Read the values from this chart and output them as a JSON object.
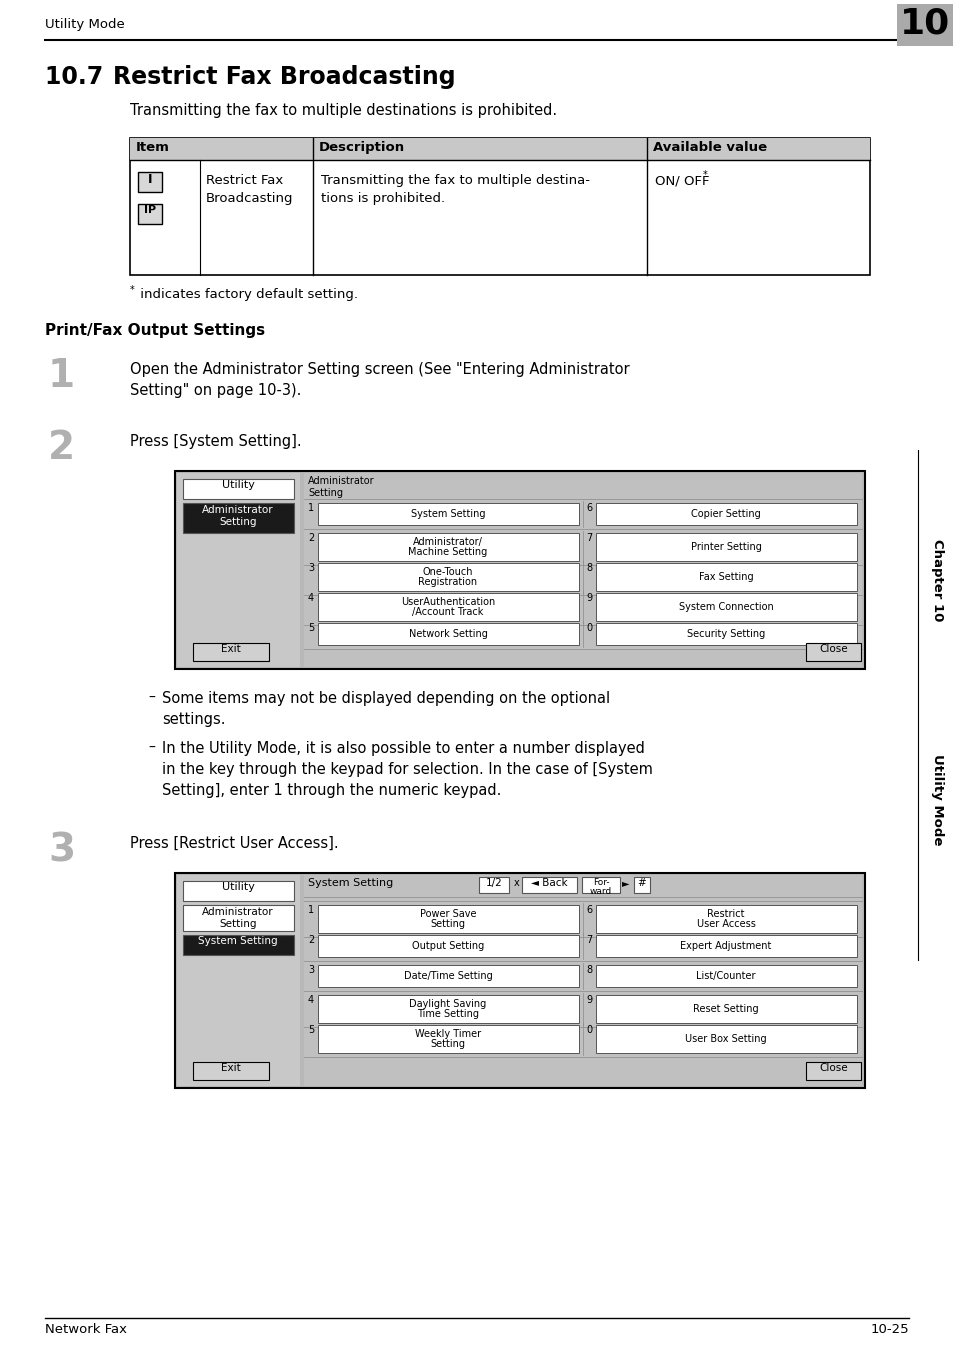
{
  "page_header": "Utility Mode",
  "chapter_num": "10",
  "section_num": "10.7",
  "section_title": "Restrict Fax Broadcasting",
  "section_intro": "Transmitting the fax to multiple destinations is prohibited.",
  "table_headers": [
    "Item",
    "Description",
    "Available value"
  ],
  "table_icon1": "I",
  "table_icon2": "IP",
  "table_col2": "Restrict Fax\nBroadcasting",
  "table_col3": "Transmitting the fax to multiple destina-\ntions is prohibited.",
  "table_col4": "ON/ OFF",
  "footnote_star": "*",
  "footnote_text": " indicates factory default setting.",
  "subsection_title": "Print/Fax Output Settings",
  "step1_num": "1",
  "step1_text": "Open the Administrator Setting screen (See \"Entering Administrator\nSetting\" on page 10-3).",
  "step2_num": "2",
  "step2_text": "Press [System Setting].",
  "step3_num": "3",
  "step3_text": "Press [Restrict User Access].",
  "bullet1": "Some items may not be displayed depending on the optional\nsettings.",
  "bullet2": "In the Utility Mode, it is also possible to enter a number displayed\nin the key through the keypad for selection. In the case of [System\nSetting], enter 1 through the numeric keypad.",
  "sidebar_ch": "Chapter 10",
  "sidebar_mode": "Utility Mode",
  "footer_left": "Network Fax",
  "footer_right": "10-25",
  "screen1_rows": [
    [
      "1",
      "System Setting",
      "6",
      "Copier Setting"
    ],
    [
      "2",
      "Administrator/\nMachine Setting",
      "7",
      "Printer Setting"
    ],
    [
      "3",
      "One-Touch\nRegistration",
      "8",
      "Fax Setting"
    ],
    [
      "4",
      "UserAuthentication\n/Account Track",
      "9",
      "System Connection"
    ],
    [
      "5",
      "Network Setting",
      "0",
      "Security Setting"
    ]
  ],
  "screen2_rows": [
    [
      "1",
      "Power Save\nSetting",
      "6",
      "Restrict\nUser Access"
    ],
    [
      "2",
      "Output Setting",
      "7",
      "Expert Adjustment"
    ],
    [
      "3",
      "Date/Time Setting",
      "8",
      "List/Counter"
    ],
    [
      "4",
      "Daylight Saving\nTime Setting",
      "9",
      "Reset Setting"
    ],
    [
      "5",
      "Weekly Timer\nSetting",
      "0",
      "User Box Setting"
    ]
  ]
}
